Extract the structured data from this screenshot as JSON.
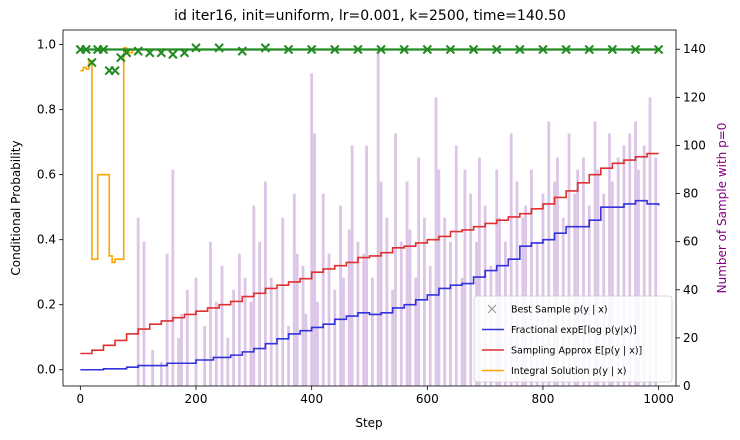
{
  "chart_data": {
    "type": "line",
    "title": "id iter16, init=uniform, lr=0.001, k=2500, time=140.50",
    "xlabel": "Step",
    "ylabel": "Conditional Probability",
    "y2label": "Number of Sample with p=0",
    "xlim": [
      -30,
      1030
    ],
    "ylim": [
      -0.05,
      1.045
    ],
    "y2lim": [
      0,
      148
    ],
    "xticks": [
      0,
      200,
      400,
      600,
      800,
      1000
    ],
    "yticks": [
      0.0,
      0.2,
      0.4,
      0.6,
      0.8,
      1.0
    ],
    "y2ticks": [
      0,
      20,
      40,
      60,
      80,
      100,
      120,
      140
    ],
    "grid": false,
    "legend_position": "lower right",
    "colors": {
      "best_sample": "#228b22",
      "fractional": "#3333dd",
      "sampling": "#e03030",
      "integral": "#ffa500",
      "bars": "#9b59b6"
    },
    "legend": [
      {
        "key": "best",
        "label": "Best Sample p(y | x)",
        "marker": "x"
      },
      {
        "key": "fractional",
        "label": "Fractional expE[log p(y|x)]",
        "marker": "line"
      },
      {
        "key": "sampling",
        "label": "Sampling Approx E[p(y | x)]",
        "marker": "line"
      },
      {
        "key": "integral",
        "label": "Integral Solution p(y | x)",
        "marker": "line"
      }
    ],
    "series": [
      {
        "name": "Best Sample p(y | x)",
        "x": [
          0,
          10,
          20,
          30,
          40,
          50,
          60,
          70,
          80,
          100,
          120,
          140,
          160,
          180,
          200,
          240,
          280,
          320,
          360,
          400,
          440,
          480,
          520,
          560,
          600,
          640,
          680,
          720,
          760,
          800,
          840,
          880,
          920,
          960,
          1000
        ],
        "y": [
          0.985,
          0.985,
          0.945,
          0.985,
          0.985,
          0.92,
          0.92,
          0.96,
          0.975,
          0.98,
          0.975,
          0.975,
          0.97,
          0.975,
          0.99,
          0.99,
          0.98,
          0.99,
          0.985,
          0.985,
          0.985,
          0.985,
          0.985,
          0.985,
          0.985,
          0.985,
          0.985,
          0.985,
          0.985,
          0.985,
          0.985,
          0.985,
          0.985,
          0.985,
          0.985
        ]
      },
      {
        "name": "Fractional expE[log p(y|x)]",
        "x": [
          0,
          40,
          80,
          100,
          150,
          200,
          230,
          260,
          280,
          300,
          320,
          340,
          360,
          380,
          400,
          420,
          440,
          460,
          480,
          500,
          520,
          540,
          560,
          580,
          600,
          620,
          640,
          660,
          680,
          700,
          720,
          740,
          760,
          780,
          800,
          820,
          840,
          860,
          880,
          900,
          920,
          940,
          960,
          980,
          1000
        ],
        "y": [
          0.0,
          0.003,
          0.008,
          0.013,
          0.02,
          0.03,
          0.038,
          0.045,
          0.055,
          0.065,
          0.08,
          0.095,
          0.11,
          0.12,
          0.13,
          0.14,
          0.155,
          0.165,
          0.175,
          0.17,
          0.175,
          0.19,
          0.2,
          0.215,
          0.23,
          0.25,
          0.26,
          0.265,
          0.285,
          0.305,
          0.32,
          0.34,
          0.38,
          0.39,
          0.4,
          0.42,
          0.44,
          0.44,
          0.46,
          0.5,
          0.5,
          0.51,
          0.52,
          0.51,
          0.505
        ]
      },
      {
        "name": "Sampling Approx E[p(y | x)]",
        "x": [
          0,
          20,
          40,
          60,
          80,
          100,
          120,
          140,
          160,
          180,
          200,
          220,
          240,
          260,
          280,
          300,
          320,
          340,
          360,
          380,
          400,
          420,
          440,
          460,
          480,
          500,
          520,
          540,
          560,
          580,
          600,
          620,
          640,
          660,
          680,
          700,
          720,
          740,
          760,
          780,
          800,
          820,
          840,
          860,
          880,
          900,
          920,
          940,
          960,
          980,
          1000
        ],
        "y": [
          0.05,
          0.06,
          0.075,
          0.09,
          0.11,
          0.125,
          0.14,
          0.15,
          0.16,
          0.17,
          0.18,
          0.19,
          0.2,
          0.21,
          0.225,
          0.235,
          0.25,
          0.26,
          0.27,
          0.28,
          0.3,
          0.31,
          0.32,
          0.33,
          0.345,
          0.35,
          0.36,
          0.375,
          0.38,
          0.39,
          0.4,
          0.41,
          0.425,
          0.43,
          0.44,
          0.45,
          0.46,
          0.47,
          0.48,
          0.495,
          0.51,
          0.53,
          0.55,
          0.575,
          0.6,
          0.62,
          0.635,
          0.645,
          0.655,
          0.665,
          0.665
        ]
      },
      {
        "name": "Integral Solution p(y | x)",
        "x": [
          0,
          5,
          10,
          15,
          20,
          25,
          30,
          35,
          40,
          45,
          50,
          55,
          60,
          65,
          70,
          75,
          80,
          90,
          100,
          110,
          1000
        ],
        "y": [
          0.92,
          0.93,
          0.925,
          0.95,
          0.34,
          0.34,
          0.6,
          0.6,
          0.6,
          0.6,
          0.35,
          0.33,
          0.34,
          0.34,
          0.34,
          0.99,
          0.975,
          0.985,
          0.985,
          0.985,
          0.985
        ]
      }
    ],
    "bars": {
      "axis": "y2",
      "x": [
        100,
        110,
        125,
        140,
        150,
        160,
        170,
        175,
        185,
        200,
        215,
        225,
        235,
        245,
        255,
        265,
        275,
        285,
        295,
        300,
        310,
        320,
        330,
        340,
        350,
        360,
        370,
        375,
        385,
        390,
        400,
        405,
        410,
        420,
        430,
        440,
        450,
        455,
        465,
        470,
        480,
        490,
        495,
        505,
        515,
        520,
        530,
        540,
        545,
        555,
        565,
        570,
        580,
        585,
        595,
        605,
        615,
        620,
        630,
        640,
        650,
        660,
        665,
        675,
        685,
        690,
        700,
        710,
        720,
        725,
        735,
        745,
        755,
        765,
        770,
        780,
        790,
        800,
        810,
        820,
        825,
        835,
        845,
        855,
        860,
        870,
        880,
        890,
        895,
        905,
        915,
        920,
        930,
        940,
        950,
        960,
        965,
        975,
        985,
        995
      ],
      "values": [
        70,
        60,
        15,
        10,
        55,
        90,
        20,
        30,
        40,
        45,
        25,
        60,
        35,
        50,
        20,
        40,
        55,
        45,
        35,
        75,
        60,
        85,
        45,
        40,
        70,
        25,
        80,
        55,
        50,
        30,
        130,
        105,
        35,
        80,
        55,
        40,
        75,
        45,
        65,
        100,
        60,
        55,
        100,
        45,
        140,
        85,
        70,
        40,
        105,
        60,
        85,
        65,
        45,
        95,
        70,
        50,
        120,
        90,
        70,
        60,
        100,
        45,
        90,
        80,
        60,
        95,
        75,
        50,
        90,
        70,
        60,
        105,
        85,
        70,
        75,
        90,
        60,
        80,
        110,
        85,
        95,
        70,
        105,
        80,
        90,
        95,
        75,
        110,
        90,
        80,
        105,
        85,
        95,
        100,
        105,
        110,
        90,
        100,
        120,
        95
      ]
    }
  }
}
